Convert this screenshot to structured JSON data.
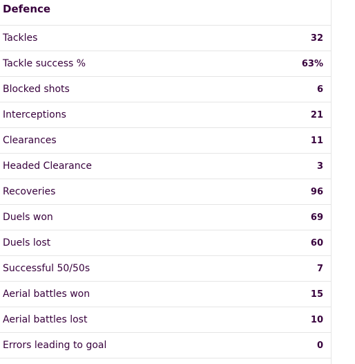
{
  "section": {
    "title": "Defence"
  },
  "stats": [
    {
      "label": "Tackles",
      "value": "32"
    },
    {
      "label": "Tackle success %",
      "value": "63%"
    },
    {
      "label": "Blocked shots",
      "value": "6"
    },
    {
      "label": "Interceptions",
      "value": "21"
    },
    {
      "label": "Clearances",
      "value": "11"
    },
    {
      "label": "Headed Clearance",
      "value": "3"
    },
    {
      "label": "Recoveries",
      "value": "96"
    },
    {
      "label": "Duels won",
      "value": "69"
    },
    {
      "label": "Duels lost",
      "value": "60"
    },
    {
      "label": "Successful 50/50s",
      "value": "7"
    },
    {
      "label": "Aerial battles won",
      "value": "15"
    },
    {
      "label": "Aerial battles lost",
      "value": "10"
    },
    {
      "label": "Errors leading to goal",
      "value": "0"
    }
  ]
}
